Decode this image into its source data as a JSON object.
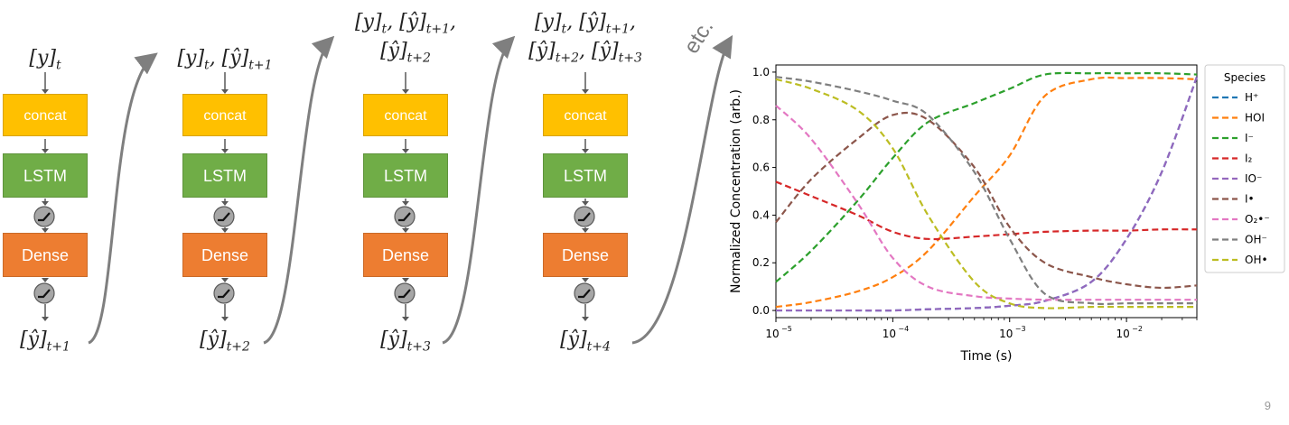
{
  "diagram": {
    "steps": [
      {
        "input_lines": [
          [
            "[y]",
            "t"
          ]
        ],
        "output": [
          "[ŷ]",
          "t+1"
        ]
      },
      {
        "input_lines": [
          [
            "[y]",
            "t",
            ", [ŷ]",
            "t+1"
          ]
        ],
        "output": [
          "[ŷ]",
          "t+2"
        ]
      },
      {
        "input_lines": [
          [
            "[y]",
            "t",
            ", [ŷ]",
            "t+1",
            ","
          ],
          [
            "[ŷ]",
            "t+2"
          ]
        ],
        "output": [
          "[ŷ]",
          "t+3"
        ]
      },
      {
        "input_lines": [
          [
            "[y]",
            "t",
            ", [ŷ]",
            "t+1",
            ","
          ],
          [
            "[ŷ]",
            "t+2",
            ", [ŷ]",
            "t+3"
          ]
        ],
        "output": [
          "[ŷ]",
          "t+4"
        ]
      }
    ],
    "blocks": {
      "concat": "concat",
      "lstm": "LSTM",
      "dense": "Dense"
    },
    "etc_label": "etc."
  },
  "page_number": "9",
  "chart_data": {
    "type": "line",
    "xlabel": "Time (s)",
    "ylabel": "Normalized Concentration (arb.)",
    "xscale": "log",
    "xlim": [
      1e-05,
      0.04
    ],
    "ylim": [
      -0.03,
      1.03
    ],
    "xticks": [
      {
        "value": 1e-05,
        "base": "10",
        "exp": "−5"
      },
      {
        "value": 0.0001,
        "base": "10",
        "exp": "−4"
      },
      {
        "value": 0.001,
        "base": "10",
        "exp": "−3"
      },
      {
        "value": 0.01,
        "base": "10",
        "exp": "−2"
      }
    ],
    "yticks": [
      "0.0",
      "0.2",
      "0.4",
      "0.6",
      "0.8",
      "1.0"
    ],
    "legend_title": "Species",
    "legend_position": "outside-right",
    "x": [
      1e-05,
      2e-05,
      5e-05,
      0.0001,
      0.0002,
      0.0005,
      0.001,
      0.002,
      0.005,
      0.01,
      0.02,
      0.04
    ],
    "series": [
      {
        "name": "H⁺",
        "color": "#1f77b4",
        "values": [
          0.0,
          0.0,
          0.0,
          0.0,
          0.005,
          0.01,
          0.02,
          0.04,
          0.12,
          0.3,
          0.58,
          0.98
        ]
      },
      {
        "name": "HOI",
        "color": "#ff7f0e",
        "values": [
          0.015,
          0.035,
          0.08,
          0.14,
          0.25,
          0.48,
          0.65,
          0.9,
          0.97,
          0.975,
          0.975,
          0.97
        ]
      },
      {
        "name": "I⁻",
        "color": "#2ca02c",
        "values": [
          0.12,
          0.25,
          0.46,
          0.64,
          0.79,
          0.87,
          0.93,
          0.99,
          0.995,
          0.995,
          0.995,
          0.99
        ]
      },
      {
        "name": "I₂",
        "color": "#d62728",
        "values": [
          0.54,
          0.48,
          0.4,
          0.33,
          0.3,
          0.31,
          0.32,
          0.33,
          0.335,
          0.335,
          0.34,
          0.34
        ]
      },
      {
        "name": "IO⁻",
        "color": "#9467bd",
        "values": [
          0.0,
          0.0,
          0.0,
          0.0,
          0.005,
          0.01,
          0.02,
          0.04,
          0.12,
          0.3,
          0.58,
          0.98
        ]
      },
      {
        "name": "I•",
        "color": "#8c564b",
        "values": [
          0.37,
          0.55,
          0.72,
          0.82,
          0.8,
          0.6,
          0.35,
          0.2,
          0.14,
          0.11,
          0.095,
          0.105
        ]
      },
      {
        "name": "O₂•⁻",
        "color": "#e377c2",
        "values": [
          0.86,
          0.72,
          0.45,
          0.22,
          0.1,
          0.06,
          0.05,
          0.045,
          0.045,
          0.045,
          0.045,
          0.045
        ]
      },
      {
        "name": "OH⁻",
        "color": "#7f7f7f",
        "values": [
          0.98,
          0.96,
          0.92,
          0.88,
          0.82,
          0.58,
          0.3,
          0.07,
          0.03,
          0.03,
          0.03,
          0.03
        ]
      },
      {
        "name": "OH•",
        "color": "#bcbd22",
        "values": [
          0.97,
          0.93,
          0.84,
          0.68,
          0.4,
          0.12,
          0.03,
          0.01,
          0.015,
          0.015,
          0.015,
          0.015
        ]
      }
    ]
  }
}
